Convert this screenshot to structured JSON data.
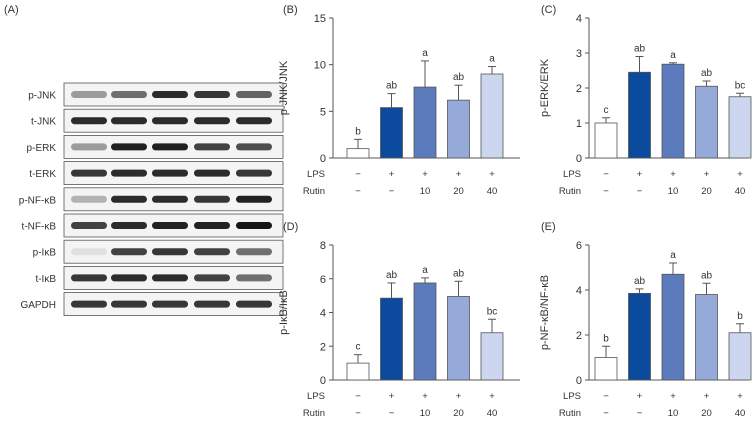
{
  "panel_labels": {
    "a": "(A)",
    "b": "(B)",
    "c": "(C)",
    "d": "(D)",
    "e": "(E)"
  },
  "blot": {
    "labels": [
      "p-JNK",
      "t-JNK",
      "p-ERK",
      "t-ERK",
      "p-NF-κB",
      "t-NF-κB",
      "p-IκB",
      "t-IκB",
      "GAPDH"
    ],
    "intensity": [
      [
        0.35,
        0.55,
        0.85,
        0.8,
        0.6
      ],
      [
        0.85,
        0.85,
        0.85,
        0.85,
        0.85
      ],
      [
        0.35,
        0.9,
        0.9,
        0.75,
        0.7
      ],
      [
        0.8,
        0.85,
        0.85,
        0.85,
        0.8
      ],
      [
        0.25,
        0.85,
        0.85,
        0.8,
        0.9
      ],
      [
        0.75,
        0.85,
        0.9,
        0.9,
        0.95
      ],
      [
        0.05,
        0.75,
        0.8,
        0.75,
        0.55
      ],
      [
        0.8,
        0.85,
        0.85,
        0.75,
        0.55
      ],
      [
        0.8,
        0.8,
        0.8,
        0.8,
        0.8
      ]
    ]
  },
  "treatment_table": {
    "row_labels": [
      "LPS",
      "Rutin"
    ],
    "lps": [
      "−",
      "+",
      "+",
      "+",
      "+"
    ],
    "rutin": [
      "−",
      "−",
      "10",
      "20",
      "40"
    ]
  },
  "chart_data": [
    {
      "type": "bar",
      "panel": "B",
      "ylabel": "p-JNK/JNK",
      "ylim": [
        0,
        15
      ],
      "yticks": [
        0,
        5,
        10,
        15
      ],
      "values": [
        1.0,
        5.4,
        7.6,
        6.2,
        9.0
      ],
      "errors": [
        1.0,
        1.5,
        2.8,
        1.6,
        0.8
      ],
      "letters": [
        "b",
        "ab",
        "a",
        "ab",
        "a"
      ]
    },
    {
      "type": "bar",
      "panel": "C",
      "ylabel": "p-ERK/ERK",
      "ylim": [
        0,
        4
      ],
      "yticks": [
        0,
        1,
        2,
        3,
        4
      ],
      "values": [
        1.0,
        2.45,
        2.68,
        2.05,
        1.75
      ],
      "errors": [
        0.15,
        0.45,
        0.04,
        0.15,
        0.1
      ],
      "letters": [
        "c",
        "ab",
        "a",
        "ab",
        "bc"
      ]
    },
    {
      "type": "bar",
      "panel": "D",
      "ylabel": "p-IκB/IκB",
      "ylim": [
        0,
        8
      ],
      "yticks": [
        0,
        2,
        4,
        6,
        8
      ],
      "values": [
        1.0,
        4.85,
        5.75,
        4.95,
        2.8
      ],
      "errors": [
        0.5,
        0.9,
        0.3,
        0.9,
        0.8
      ],
      "letters": [
        "c",
        "ab",
        "a",
        "ab",
        "bc"
      ]
    },
    {
      "type": "bar",
      "panel": "E",
      "ylabel": "p-NF-κB/NF-κB",
      "ylim": [
        0,
        6
      ],
      "yticks": [
        0,
        2,
        4,
        6
      ],
      "values": [
        1.0,
        3.85,
        4.7,
        3.8,
        2.1
      ],
      "errors": [
        0.5,
        0.2,
        0.5,
        0.5,
        0.4
      ],
      "letters": [
        "b",
        "ab",
        "a",
        "ab",
        "b"
      ]
    }
  ],
  "colors": {
    "bars": [
      "#ffffff",
      "#0b4a9c",
      "#5c7bbc",
      "#95aad9",
      "#cdd6ef"
    ],
    "bar_edge": "#555555",
    "axis": "#555555"
  }
}
